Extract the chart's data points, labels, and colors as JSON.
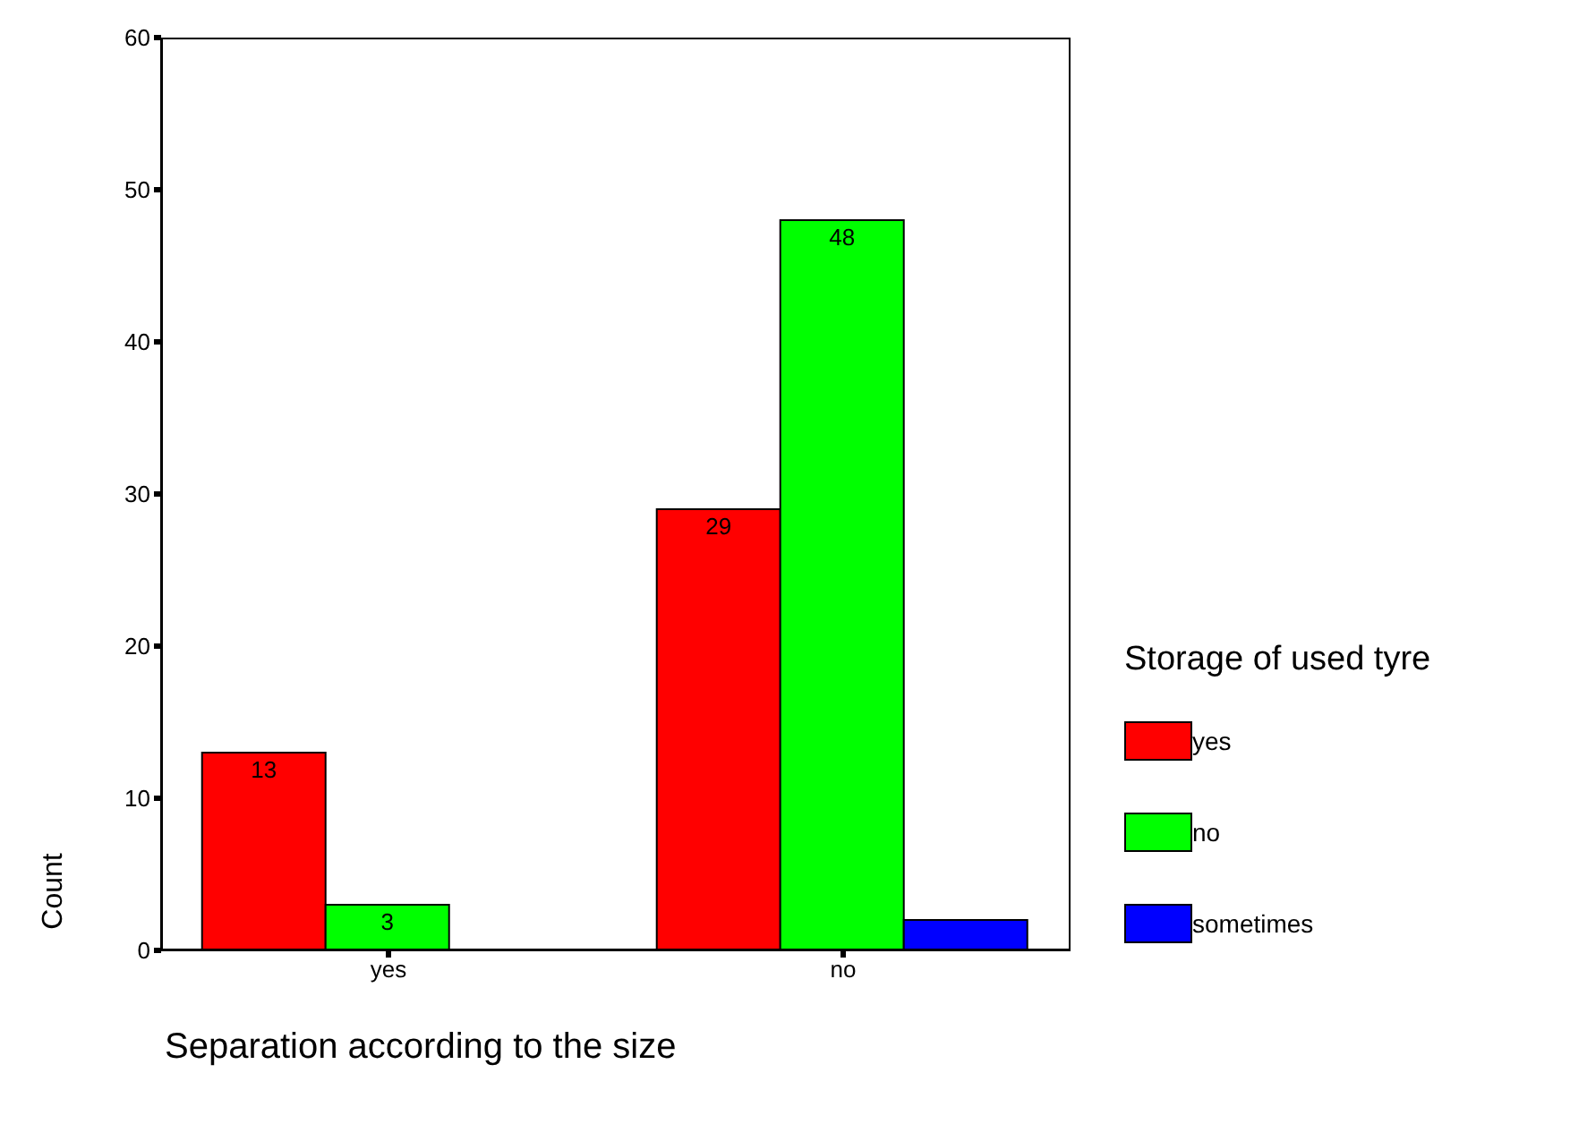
{
  "chart_data": {
    "type": "bar",
    "xlabel": "Separation according to the size",
    "ylabel": "Count",
    "legend_title": "Storage of used tyre",
    "categories": [
      "yes",
      "no"
    ],
    "series": [
      {
        "name": "yes",
        "color": "#ff0000",
        "values": [
          13,
          29
        ],
        "value_labels": [
          "13",
          "29"
        ]
      },
      {
        "name": "no",
        "color": "#00ff00",
        "values": [
          3,
          48
        ],
        "value_labels": [
          "3",
          "48"
        ]
      },
      {
        "name": "sometimes",
        "color": "#0000ff",
        "values": [
          null,
          2
        ],
        "value_labels": [
          null,
          null
        ]
      }
    ],
    "ylim": [
      0,
      60
    ],
    "yticks": [
      0,
      10,
      20,
      30,
      40,
      50,
      60
    ],
    "grid": false,
    "legend": "right"
  }
}
